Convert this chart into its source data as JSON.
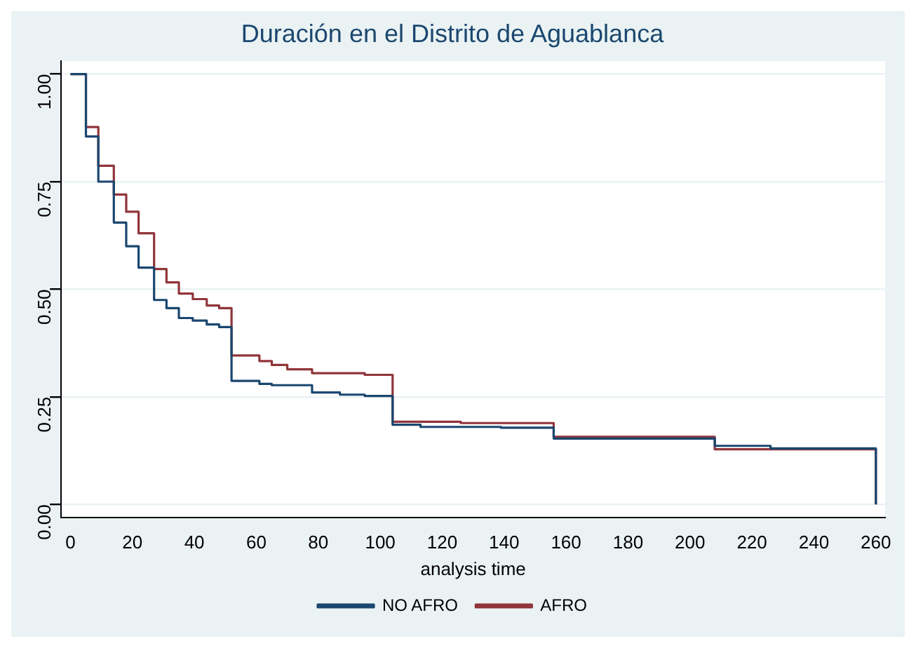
{
  "chart_data": {
    "type": "step",
    "title": "Duración en el Distrito de Aguablanca",
    "xlabel": "analysis time",
    "xlim": [
      -3,
      263
    ],
    "xticks": [
      0,
      20,
      40,
      60,
      80,
      100,
      120,
      140,
      160,
      180,
      200,
      220,
      240,
      260
    ],
    "ylim": [
      -0.03,
      1.03
    ],
    "yticks": [
      {
        "value": 0,
        "label": "0.00"
      },
      {
        "value": 0.25,
        "label": "0.25"
      },
      {
        "value": 0.5,
        "label": "0.50"
      },
      {
        "value": 0.75,
        "label": "0.75"
      },
      {
        "value": 1,
        "label": "1.00"
      }
    ],
    "grid": "y",
    "legend": "bottom",
    "series": [
      {
        "name": "NO AFRO",
        "color": "#1a476f",
        "x": [
          0,
          5,
          9,
          14,
          18,
          22,
          27,
          31,
          35,
          39.5,
          44,
          48,
          52,
          61,
          65,
          78,
          87,
          95,
          104,
          113,
          139,
          156,
          208,
          226,
          260
        ],
        "values": [
          1,
          0.855,
          0.75,
          0.655,
          0.6,
          0.55,
          0.475,
          0.456,
          0.433,
          0.427,
          0.418,
          0.412,
          0.287,
          0.28,
          0.277,
          0.26,
          0.255,
          0.252,
          0.185,
          0.18,
          0.178,
          0.153,
          0.136,
          0.13,
          0
        ]
      },
      {
        "name": "AFRO",
        "color": "#90353b",
        "x": [
          0,
          5,
          9,
          14,
          18,
          22,
          27,
          31,
          35,
          39.5,
          44,
          48,
          52,
          61,
          65,
          70,
          78,
          95,
          104,
          126,
          156,
          208,
          260
        ],
        "values": [
          1,
          0.877,
          0.787,
          0.72,
          0.68,
          0.63,
          0.547,
          0.516,
          0.49,
          0.477,
          0.462,
          0.456,
          0.346,
          0.333,
          0.324,
          0.314,
          0.305,
          0.301,
          0.192,
          0.189,
          0.157,
          0.128,
          0
        ]
      }
    ]
  }
}
